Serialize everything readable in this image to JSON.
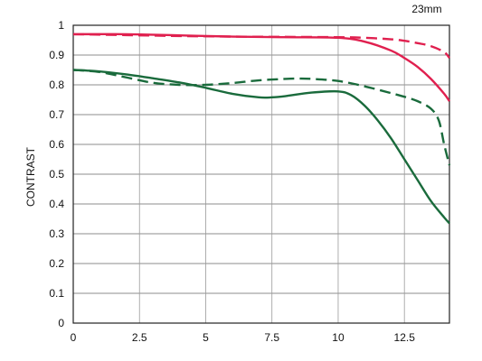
{
  "chart_data": {
    "type": "line",
    "title": "23mm",
    "xlabel": "",
    "ylabel": "CONTRAST",
    "xlim": [
      0,
      14.2
    ],
    "ylim": [
      0,
      1
    ],
    "xticks": [
      0,
      2.5,
      5,
      7.5,
      10,
      12.5
    ],
    "xtick_labels": [
      "0",
      "2.5",
      "5",
      "7.5",
      "10",
      "12.5"
    ],
    "yticks": [
      0,
      0.1,
      0.2,
      0.3,
      0.4,
      0.5,
      0.6,
      0.7,
      0.8,
      0.9,
      1
    ],
    "ytick_labels": [
      "0",
      "0.1",
      "0.2",
      "0.3",
      "0.4",
      "0.5",
      "0.6",
      "0.7",
      "0.8",
      "0.9",
      "1"
    ],
    "grid": true,
    "legend": false,
    "series": [
      {
        "color": "#e0204f",
        "dashed": false,
        "x": [
          0,
          2,
          4,
          6,
          8,
          10,
          11,
          12,
          12.5,
          13,
          13.5,
          14,
          14.2
        ],
        "y": [
          0.97,
          0.97,
          0.966,
          0.962,
          0.96,
          0.958,
          0.945,
          0.915,
          0.89,
          0.86,
          0.82,
          0.77,
          0.745
        ]
      },
      {
        "color": "#e0204f",
        "dashed": true,
        "x": [
          0,
          2,
          4,
          6,
          8,
          10,
          11,
          12,
          12.5,
          13,
          13.5,
          14,
          14.2
        ],
        "y": [
          0.97,
          0.967,
          0.964,
          0.962,
          0.961,
          0.96,
          0.958,
          0.953,
          0.948,
          0.94,
          0.93,
          0.91,
          0.89
        ]
      },
      {
        "color": "#1a6b3c",
        "dashed": false,
        "x": [
          0,
          0.5,
          1,
          2,
          3,
          4,
          5,
          6,
          7,
          7.5,
          8,
          9,
          10,
          10.5,
          11,
          11.5,
          12,
          12.5,
          13,
          13.5,
          14,
          14.2
        ],
        "y": [
          0.85,
          0.848,
          0.845,
          0.835,
          0.822,
          0.808,
          0.79,
          0.77,
          0.758,
          0.758,
          0.762,
          0.774,
          0.778,
          0.765,
          0.73,
          0.68,
          0.62,
          0.55,
          0.48,
          0.41,
          0.355,
          0.335
        ]
      },
      {
        "color": "#1a6b3c",
        "dashed": true,
        "x": [
          0,
          1,
          2,
          3,
          4,
          5,
          6,
          7,
          8,
          8.5,
          9,
          10,
          11,
          12,
          12.5,
          13,
          13.5,
          13.8,
          14,
          14.2
        ],
        "y": [
          0.85,
          0.843,
          0.825,
          0.807,
          0.8,
          0.8,
          0.806,
          0.815,
          0.82,
          0.821,
          0.82,
          0.813,
          0.795,
          0.772,
          0.76,
          0.745,
          0.72,
          0.68,
          0.6,
          0.53
        ]
      }
    ]
  }
}
